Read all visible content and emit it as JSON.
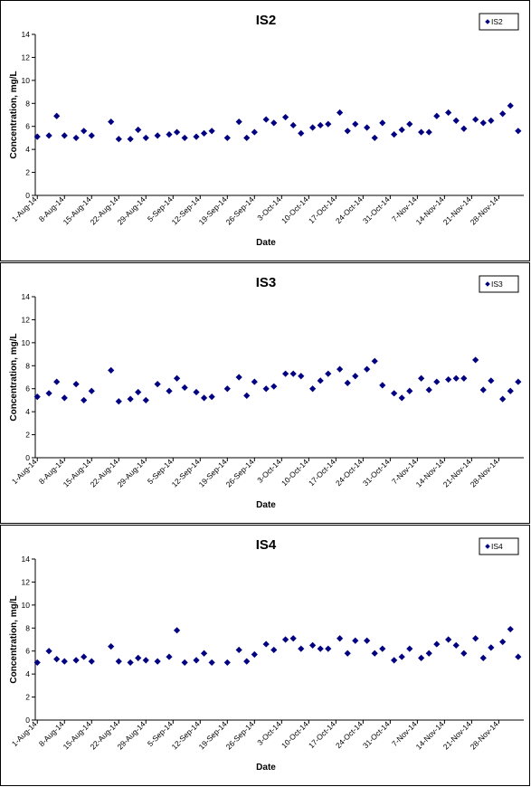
{
  "chart_data": [
    {
      "type": "scatter",
      "title": "IS2",
      "xlabel": "Date",
      "ylabel": "Concentration, mg/L",
      "ylim": [
        0,
        14
      ],
      "yticks": [
        0,
        2,
        4,
        6,
        8,
        10,
        12,
        14
      ],
      "xlim": [
        "1-Aug-14",
        "28-Nov-14"
      ],
      "xtick_labels": [
        "1-Aug-14",
        "8-Aug-14",
        "15-Aug-14",
        "22-Aug-14",
        "29-Aug-14",
        "5-Sep-14",
        "12-Sep-14",
        "19-Sep-14",
        "26-Sep-14",
        "3-Oct-14",
        "10-Oct-14",
        "17-Oct-14",
        "24-Oct-14",
        "31-Oct-14",
        "7-Nov-14",
        "14-Nov-14",
        "21-Nov-14",
        "28-Nov-14"
      ],
      "legend": "top-right",
      "color": "#000080",
      "series": [
        {
          "name": "IS2",
          "points": [
            [
              "1-Aug-14",
              5.1
            ],
            [
              "4-Aug-14",
              5.2
            ],
            [
              "6-Aug-14",
              6.9
            ],
            [
              "8-Aug-14",
              5.2
            ],
            [
              "11-Aug-14",
              5.0
            ],
            [
              "13-Aug-14",
              5.6
            ],
            [
              "15-Aug-14",
              5.2
            ],
            [
              "20-Aug-14",
              6.4
            ],
            [
              "22-Aug-14",
              4.9
            ],
            [
              "25-Aug-14",
              4.9
            ],
            [
              "27-Aug-14",
              5.7
            ],
            [
              "29-Aug-14",
              5.0
            ],
            [
              "1-Sep-14",
              5.2
            ],
            [
              "4-Sep-14",
              5.3
            ],
            [
              "6-Sep-14",
              5.5
            ],
            [
              "8-Sep-14",
              5.0
            ],
            [
              "11-Sep-14",
              5.1
            ],
            [
              "13-Sep-14",
              5.4
            ],
            [
              "15-Sep-14",
              5.6
            ],
            [
              "19-Sep-14",
              5.0
            ],
            [
              "22-Sep-14",
              6.4
            ],
            [
              "24-Sep-14",
              5.0
            ],
            [
              "26-Sep-14",
              5.5
            ],
            [
              "29-Sep-14",
              6.6
            ],
            [
              "1-Oct-14",
              6.3
            ],
            [
              "4-Oct-14",
              6.8
            ],
            [
              "6-Oct-14",
              6.1
            ],
            [
              "8-Oct-14",
              5.4
            ],
            [
              "11-Oct-14",
              5.9
            ],
            [
              "13-Oct-14",
              6.1
            ],
            [
              "15-Oct-14",
              6.2
            ],
            [
              "18-Oct-14",
              7.2
            ],
            [
              "20-Oct-14",
              5.6
            ],
            [
              "22-Oct-14",
              6.2
            ],
            [
              "25-Oct-14",
              5.9
            ],
            [
              "27-Oct-14",
              5.0
            ],
            [
              "29-Oct-14",
              6.3
            ],
            [
              "1-Nov-14",
              5.3
            ],
            [
              "3-Nov-14",
              5.7
            ],
            [
              "5-Nov-14",
              6.2
            ],
            [
              "8-Nov-14",
              5.5
            ],
            [
              "10-Nov-14",
              5.5
            ],
            [
              "12-Nov-14",
              6.9
            ],
            [
              "15-Nov-14",
              7.2
            ],
            [
              "17-Nov-14",
              6.5
            ],
            [
              "19-Nov-14",
              5.8
            ],
            [
              "22-Nov-14",
              6.6
            ],
            [
              "24-Nov-14",
              6.3
            ],
            [
              "26-Nov-14",
              6.5
            ],
            [
              "29-Nov-14",
              7.1
            ],
            [
              "1-Dec-14",
              7.8
            ],
            [
              "3-Dec-14",
              5.6
            ]
          ]
        }
      ]
    },
    {
      "type": "scatter",
      "title": "IS3",
      "xlabel": "Date",
      "ylabel": "Concentration, mg/L",
      "ylim": [
        0,
        14
      ],
      "yticks": [
        0,
        2,
        4,
        6,
        8,
        10,
        12,
        14
      ],
      "xlim": [
        "1-Aug-14",
        "28-Nov-14"
      ],
      "xtick_labels": [
        "1-Aug-14",
        "8-Aug-14",
        "15-Aug-14",
        "22-Aug-14",
        "29-Aug-14",
        "5-Sep-14",
        "12-Sep-14",
        "19-Sep-14",
        "26-Sep-14",
        "3-Oct-14",
        "10-Oct-14",
        "17-Oct-14",
        "24-Oct-14",
        "31-Oct-14",
        "7-Nov-14",
        "14-Nov-14",
        "21-Nov-14",
        "28-Nov-14"
      ],
      "legend": "top-right",
      "color": "#000080",
      "series": [
        {
          "name": "IS3",
          "points": [
            [
              "1-Aug-14",
              5.3
            ],
            [
              "4-Aug-14",
              5.6
            ],
            [
              "6-Aug-14",
              6.6
            ],
            [
              "8-Aug-14",
              5.2
            ],
            [
              "11-Aug-14",
              6.4
            ],
            [
              "13-Aug-14",
              5.0
            ],
            [
              "15-Aug-14",
              5.8
            ],
            [
              "20-Aug-14",
              7.6
            ],
            [
              "22-Aug-14",
              4.9
            ],
            [
              "25-Aug-14",
              5.1
            ],
            [
              "27-Aug-14",
              5.7
            ],
            [
              "29-Aug-14",
              5.0
            ],
            [
              "1-Sep-14",
              6.4
            ],
            [
              "4-Sep-14",
              5.8
            ],
            [
              "6-Sep-14",
              6.9
            ],
            [
              "8-Sep-14",
              6.1
            ],
            [
              "11-Sep-14",
              5.7
            ],
            [
              "13-Sep-14",
              5.2
            ],
            [
              "15-Sep-14",
              5.3
            ],
            [
              "19-Sep-14",
              6.0
            ],
            [
              "22-Sep-14",
              7.0
            ],
            [
              "24-Sep-14",
              5.4
            ],
            [
              "26-Sep-14",
              6.6
            ],
            [
              "29-Sep-14",
              6.0
            ],
            [
              "1-Oct-14",
              6.2
            ],
            [
              "4-Oct-14",
              7.3
            ],
            [
              "6-Oct-14",
              7.3
            ],
            [
              "8-Oct-14",
              7.1
            ],
            [
              "11-Oct-14",
              6.0
            ],
            [
              "13-Oct-14",
              6.7
            ],
            [
              "15-Oct-14",
              7.3
            ],
            [
              "18-Oct-14",
              7.7
            ],
            [
              "20-Oct-14",
              6.5
            ],
            [
              "22-Oct-14",
              7.1
            ],
            [
              "25-Oct-14",
              7.7
            ],
            [
              "27-Oct-14",
              8.4
            ],
            [
              "29-Oct-14",
              6.3
            ],
            [
              "1-Nov-14",
              5.6
            ],
            [
              "3-Nov-14",
              5.2
            ],
            [
              "5-Nov-14",
              5.8
            ],
            [
              "8-Nov-14",
              6.9
            ],
            [
              "10-Nov-14",
              5.9
            ],
            [
              "12-Nov-14",
              6.6
            ],
            [
              "15-Nov-14",
              6.8
            ],
            [
              "17-Nov-14",
              6.9
            ],
            [
              "19-Nov-14",
              6.9
            ],
            [
              "22-Nov-14",
              8.5
            ],
            [
              "24-Nov-14",
              5.9
            ],
            [
              "26-Nov-14",
              6.7
            ],
            [
              "29-Nov-14",
              5.1
            ],
            [
              "1-Dec-14",
              5.8
            ],
            [
              "3-Dec-14",
              6.6
            ]
          ]
        }
      ]
    },
    {
      "type": "scatter",
      "title": "IS4",
      "xlabel": "Date",
      "ylabel": "Concentration, mg/L",
      "ylim": [
        0,
        14
      ],
      "yticks": [
        0,
        2,
        4,
        6,
        8,
        10,
        12,
        14
      ],
      "xlim": [
        "1-Aug-14",
        "28-Nov-14"
      ],
      "xtick_labels": [
        "1-Aug-14",
        "8-Aug-14",
        "15-Aug-14",
        "22-Aug-14",
        "29-Aug-14",
        "5-Sep-14",
        "12-Sep-14",
        "19-Sep-14",
        "26-Sep-14",
        "3-Oct-14",
        "10-Oct-14",
        "17-Oct-14",
        "24-Oct-14",
        "31-Oct-14",
        "7-Nov-14",
        "14-Nov-14",
        "21-Nov-14",
        "28-Nov-14"
      ],
      "legend": "top-right",
      "color": "#000080",
      "series": [
        {
          "name": "IS4",
          "points": [
            [
              "1-Aug-14",
              5.0
            ],
            [
              "4-Aug-14",
              6.0
            ],
            [
              "6-Aug-14",
              5.3
            ],
            [
              "8-Aug-14",
              5.1
            ],
            [
              "11-Aug-14",
              5.2
            ],
            [
              "13-Aug-14",
              5.5
            ],
            [
              "15-Aug-14",
              5.1
            ],
            [
              "20-Aug-14",
              6.4
            ],
            [
              "22-Aug-14",
              5.1
            ],
            [
              "25-Aug-14",
              5.0
            ],
            [
              "27-Aug-14",
              5.4
            ],
            [
              "29-Aug-14",
              5.2
            ],
            [
              "1-Sep-14",
              5.1
            ],
            [
              "4-Sep-14",
              5.5
            ],
            [
              "6-Sep-14",
              7.8
            ],
            [
              "8-Sep-14",
              5.0
            ],
            [
              "11-Sep-14",
              5.2
            ],
            [
              "13-Sep-14",
              5.8
            ],
            [
              "15-Sep-14",
              5.0
            ],
            [
              "19-Sep-14",
              5.0
            ],
            [
              "22-Sep-14",
              6.1
            ],
            [
              "24-Sep-14",
              5.1
            ],
            [
              "26-Sep-14",
              5.7
            ],
            [
              "29-Sep-14",
              6.6
            ],
            [
              "1-Oct-14",
              6.1
            ],
            [
              "4-Oct-14",
              7.0
            ],
            [
              "6-Oct-14",
              7.1
            ],
            [
              "8-Oct-14",
              6.2
            ],
            [
              "11-Oct-14",
              6.5
            ],
            [
              "13-Oct-14",
              6.2
            ],
            [
              "15-Oct-14",
              6.2
            ],
            [
              "18-Oct-14",
              7.1
            ],
            [
              "20-Oct-14",
              5.8
            ],
            [
              "22-Oct-14",
              6.9
            ],
            [
              "25-Oct-14",
              6.9
            ],
            [
              "27-Oct-14",
              5.8
            ],
            [
              "29-Oct-14",
              6.2
            ],
            [
              "1-Nov-14",
              5.2
            ],
            [
              "3-Nov-14",
              5.5
            ],
            [
              "5-Nov-14",
              6.2
            ],
            [
              "8-Nov-14",
              5.4
            ],
            [
              "10-Nov-14",
              5.8
            ],
            [
              "12-Nov-14",
              6.6
            ],
            [
              "15-Nov-14",
              7.0
            ],
            [
              "17-Nov-14",
              6.5
            ],
            [
              "19-Nov-14",
              5.8
            ],
            [
              "22-Nov-14",
              7.1
            ],
            [
              "24-Nov-14",
              5.4
            ],
            [
              "26-Nov-14",
              6.3
            ],
            [
              "29-Nov-14",
              6.8
            ],
            [
              "1-Dec-14",
              7.9
            ],
            [
              "3-Dec-14",
              5.5
            ]
          ]
        }
      ]
    }
  ]
}
